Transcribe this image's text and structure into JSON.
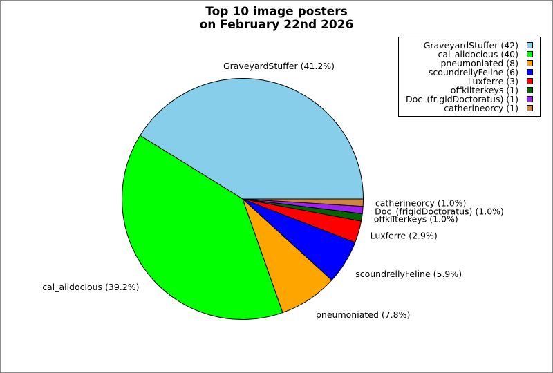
{
  "title": {
    "line1": "Top 10 image posters",
    "line2": "on February 22nd 2026"
  },
  "chart_data": {
    "type": "pie",
    "title": "Top 10 image posters on February 22nd 2026",
    "start_angle_deg": 0,
    "direction": "counterclockwise",
    "legend_position": "upper right",
    "label_distance": 1.1,
    "slices": [
      {
        "label": "GraveyardStuffer",
        "count": 42,
        "percent": "41.2%",
        "color": "#87CEEB",
        "legend_label": "GraveyardStuffer (42)",
        "slice_label": "GraveyardStuffer (41.2%)"
      },
      {
        "label": "cal_alidocious",
        "count": 40,
        "percent": "39.2%",
        "color": "#00FF00",
        "legend_label": "cal_alidocious (40)",
        "slice_label": "cal_alidocious (39.2%)"
      },
      {
        "label": "pneumoniated",
        "count": 8,
        "percent": "7.8%",
        "color": "#FFA500",
        "legend_label": "pneumoniated (8)",
        "slice_label": "pneumoniated (7.8%)"
      },
      {
        "label": "scoundrellyFeline",
        "count": 6,
        "percent": "5.9%",
        "color": "#0000FF",
        "legend_label": "scoundrellyFeline (6)",
        "slice_label": "scoundrellyFeline (5.9%)"
      },
      {
        "label": "Luxferre",
        "count": 3,
        "percent": "2.9%",
        "color": "#FF0000",
        "legend_label": "Luxferre (3)",
        "slice_label": "Luxferre (2.9%)"
      },
      {
        "label": "offkilterkeys",
        "count": 1,
        "percent": "1.0%",
        "color": "#006400",
        "legend_label": "offkilterkeys (1)",
        "slice_label": "offkilterkeys (1.0%)"
      },
      {
        "label": "Doc_(frigidDoctoratus)",
        "count": 1,
        "percent": "1.0%",
        "color": "#A020F0",
        "legend_label": "Doc_(frigidDoctoratus) (1)",
        "slice_label": "Doc_(frigidDoctoratus) (1.0%)"
      },
      {
        "label": "catherineorcy",
        "count": 1,
        "percent": "1.0%",
        "color": "#CD853F",
        "legend_label": "catherineorcy (1)",
        "slice_label": "catherineorcy (1.0%)"
      }
    ]
  }
}
